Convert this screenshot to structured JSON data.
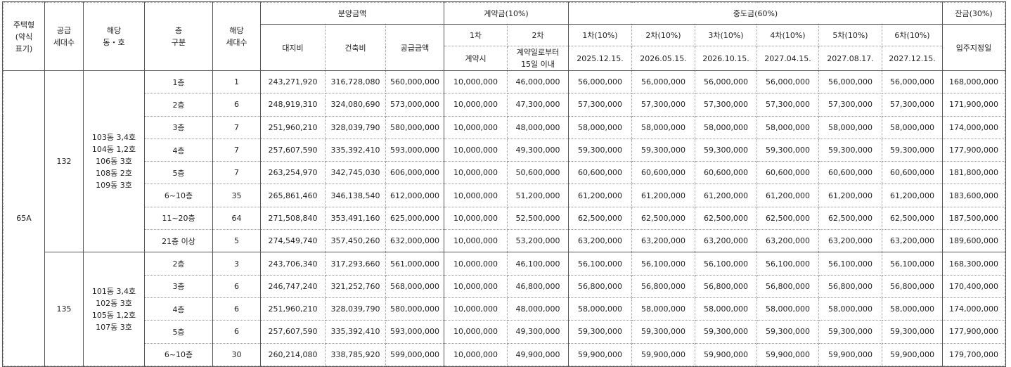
{
  "headers": {
    "type": [
      "주택형",
      "(약식",
      "표기)"
    ],
    "supply_units": [
      "공급",
      "세대수"
    ],
    "dong_ho": [
      "해당",
      "동・호"
    ],
    "floor": [
      "층",
      "구분"
    ],
    "floor_units": [
      "해당",
      "세대수"
    ],
    "sale_price": "분양금액",
    "land": "대지비",
    "building": "건축비",
    "total": "공급금액",
    "deposit": "계약금(10%)",
    "dep1": "1차",
    "dep2": "2차",
    "dep1_when": "계약시",
    "dep2_when": [
      "계약일로부터",
      "15일 이내"
    ],
    "interim": "중도금(60%)",
    "interim_cols": [
      {
        "label": "1차(10%)",
        "date": "2025.12.15."
      },
      {
        "label": "2차(10%)",
        "date": "2026.05.15."
      },
      {
        "label": "3차(10%)",
        "date": "2026.10.15."
      },
      {
        "label": "4차(10%)",
        "date": "2027.04.15."
      },
      {
        "label": "5차(10%)",
        "date": "2027.08.17."
      },
      {
        "label": "6차(10%)",
        "date": "2027.12.15."
      }
    ],
    "balance": "잔금(30%)",
    "balance_when": "입주지정일"
  },
  "type_label": "65A",
  "groups": [
    {
      "supply": "132",
      "units": [
        "103동 3,4호",
        "104동 1,2호",
        "106동 3호",
        "108동 2호",
        "109동 3호"
      ],
      "rows": [
        {
          "floor": "1층",
          "count": "1",
          "land": "243,271,920",
          "building": "316,728,080",
          "total": "560,000,000",
          "dep1": "10,000,000",
          "dep2": "46,000,000",
          "interim": "56,000,000",
          "balance": "168,000,000"
        },
        {
          "floor": "2층",
          "count": "6",
          "land": "248,919,310",
          "building": "324,080,690",
          "total": "573,000,000",
          "dep1": "10,000,000",
          "dep2": "47,300,000",
          "interim": "57,300,000",
          "balance": "171,900,000"
        },
        {
          "floor": "3층",
          "count": "7",
          "land": "251,960,210",
          "building": "328,039,790",
          "total": "580,000,000",
          "dep1": "10,000,000",
          "dep2": "48,000,000",
          "interim": "58,000,000",
          "balance": "174,000,000"
        },
        {
          "floor": "4층",
          "count": "7",
          "land": "257,607,590",
          "building": "335,392,410",
          "total": "593,000,000",
          "dep1": "10,000,000",
          "dep2": "49,300,000",
          "interim": "59,300,000",
          "balance": "177,900,000"
        },
        {
          "floor": "5층",
          "count": "7",
          "land": "263,254,970",
          "building": "342,745,030",
          "total": "606,000,000",
          "dep1": "10,000,000",
          "dep2": "50,600,000",
          "interim": "60,600,000",
          "balance": "181,800,000"
        },
        {
          "floor": "6~10층",
          "count": "35",
          "land": "265,861,460",
          "building": "346,138,540",
          "total": "612,000,000",
          "dep1": "10,000,000",
          "dep2": "51,200,000",
          "interim": "61,200,000",
          "balance": "183,600,000"
        },
        {
          "floor": "11~20층",
          "count": "64",
          "land": "271,508,840",
          "building": "353,491,160",
          "total": "625,000,000",
          "dep1": "10,000,000",
          "dep2": "52,500,000",
          "interim": "62,500,000",
          "balance": "187,500,000"
        },
        {
          "floor": "21층 이상",
          "count": "5",
          "land": "274,549,740",
          "building": "357,450,260",
          "total": "632,000,000",
          "dep1": "10,000,000",
          "dep2": "53,200,000",
          "interim": "63,200,000",
          "balance": "189,600,000"
        }
      ]
    },
    {
      "supply": "135",
      "units": [
        "101동 3,4호",
        "102동 3호",
        "105동 1,2호",
        "107동 3호"
      ],
      "rows": [
        {
          "floor": "2층",
          "count": "3",
          "land": "243,706,340",
          "building": "317,293,660",
          "total": "561,000,000",
          "dep1": "10,000,000",
          "dep2": "46,100,000",
          "interim": "56,100,000",
          "balance": "168,300,000"
        },
        {
          "floor": "3층",
          "count": "6",
          "land": "246,747,240",
          "building": "321,252,760",
          "total": "568,000,000",
          "dep1": "10,000,000",
          "dep2": "46,800,000",
          "interim": "56,800,000",
          "balance": "170,400,000"
        },
        {
          "floor": "4층",
          "count": "6",
          "land": "251,960,210",
          "building": "328,039,790",
          "total": "580,000,000",
          "dep1": "10,000,000",
          "dep2": "48,000,000",
          "interim": "58,000,000",
          "balance": "174,000,000"
        },
        {
          "floor": "5층",
          "count": "6",
          "land": "257,607,590",
          "building": "335,392,410",
          "total": "593,000,000",
          "dep1": "10,000,000",
          "dep2": "49,300,000",
          "interim": "59,300,000",
          "balance": "177,900,000"
        },
        {
          "floor": "6~10층",
          "count": "30",
          "land": "260,214,080",
          "building": "338,785,920",
          "total": "599,000,000",
          "dep1": "10,000,000",
          "dep2": "49,900,000",
          "interim": "59,900,000",
          "balance": "179,700,000"
        }
      ]
    }
  ]
}
